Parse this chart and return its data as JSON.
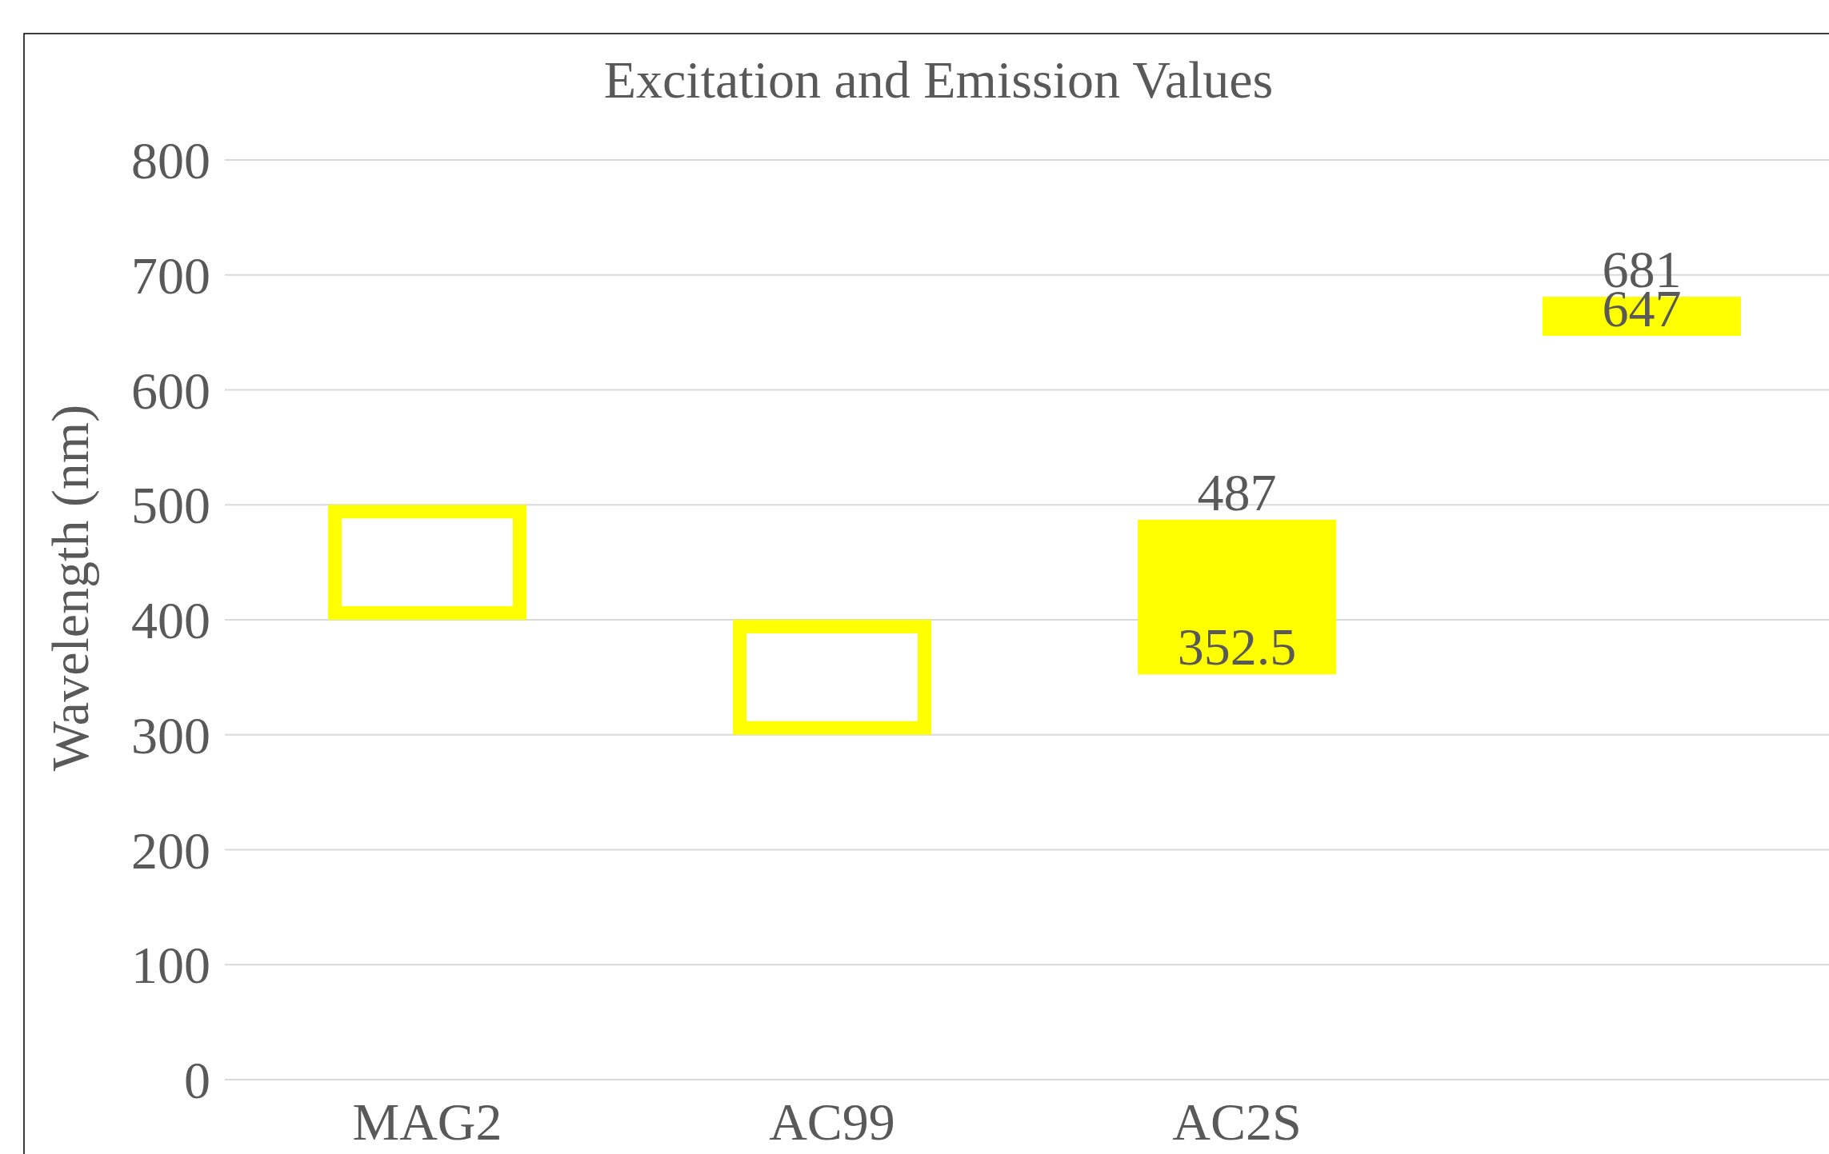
{
  "chart_data": {
    "type": "bar",
    "title": "Excitation and Emission Values",
    "ylabel": "Wavelength (nm)",
    "categories": [
      "MAG2",
      "AC99",
      "AC2S",
      null
    ],
    "base": [
      400,
      300,
      352.5,
      647
    ],
    "values": [
      100,
      100,
      134.5,
      34
    ],
    "color": "#ffff00",
    "value_labels": [
      null,
      null,
      [
        "352.5",
        "487"
      ],
      [
        "647",
        "681"
      ]
    ],
    "ylim": [
      0,
      800
    ],
    "yticks": [
      0,
      100,
      200,
      300,
      400,
      500,
      600,
      700,
      800
    ],
    "grid": "y"
  }
}
